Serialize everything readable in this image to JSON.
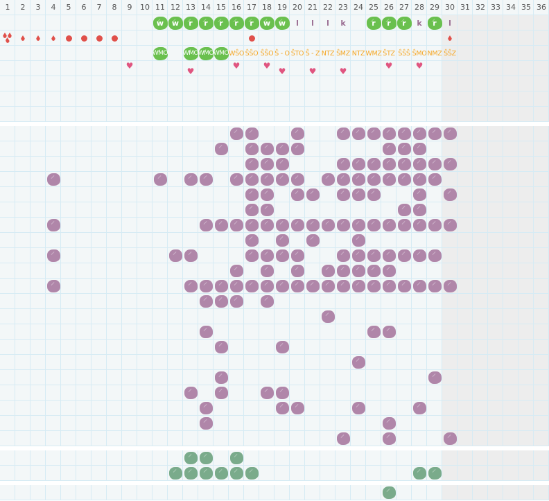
{
  "columns": [
    "1",
    "2",
    "3",
    "4",
    "5",
    "6",
    "7",
    "8",
    "9",
    "10",
    "11",
    "12",
    "13",
    "14",
    "15",
    "16",
    "17",
    "18",
    "19",
    "20",
    "21",
    "22",
    "23",
    "24",
    "25",
    "26",
    "27",
    "28",
    "29",
    "30",
    "31",
    "32",
    "33",
    "34",
    "35",
    "36"
  ],
  "colors": {
    "grid_bg": "#f3f7f8",
    "grid_line": "#d6ebf4",
    "weekend_shade": "#ededed",
    "purple_blob": "#b086a9",
    "green_blob": "#6ac04e",
    "teal_blob": "#7aab8b",
    "orange_text": "#f5a623",
    "red_marker": "#e0504a",
    "heart": "#e05580"
  },
  "top_section": {
    "letters": [
      {
        "col": 11,
        "label": "w",
        "style": "green"
      },
      {
        "col": 12,
        "label": "w",
        "style": "green"
      },
      {
        "col": 13,
        "label": "r",
        "style": "green"
      },
      {
        "col": 14,
        "label": "r",
        "style": "green"
      },
      {
        "col": 15,
        "label": "r",
        "style": "green"
      },
      {
        "col": 16,
        "label": "r",
        "style": "green"
      },
      {
        "col": 17,
        "label": "r",
        "style": "green"
      },
      {
        "col": 18,
        "label": "w",
        "style": "green"
      },
      {
        "col": 19,
        "label": "w",
        "style": "green"
      },
      {
        "col": 20,
        "label": "l",
        "style": "text"
      },
      {
        "col": 21,
        "label": "l",
        "style": "text"
      },
      {
        "col": 22,
        "label": "l",
        "style": "text"
      },
      {
        "col": 23,
        "label": "k",
        "style": "text"
      },
      {
        "col": 25,
        "label": "r",
        "style": "green"
      },
      {
        "col": 26,
        "label": "r",
        "style": "green"
      },
      {
        "col": 27,
        "label": "r",
        "style": "green"
      },
      {
        "col": 28,
        "label": "k",
        "style": "text"
      },
      {
        "col": 29,
        "label": "r",
        "style": "green"
      },
      {
        "col": 30,
        "label": "l",
        "style": "text"
      }
    ],
    "markers": [
      {
        "col": 1,
        "icon": "triple-drop"
      },
      {
        "col": 2,
        "icon": "drop"
      },
      {
        "col": 3,
        "icon": "drop"
      },
      {
        "col": 4,
        "icon": "drop"
      },
      {
        "col": 5,
        "icon": "dot"
      },
      {
        "col": 6,
        "icon": "dot"
      },
      {
        "col": 7,
        "icon": "dot"
      },
      {
        "col": 8,
        "icon": "dot"
      },
      {
        "col": 17,
        "icon": "dot"
      },
      {
        "col": 30,
        "icon": "drop"
      }
    ],
    "codes": [
      {
        "col": 11,
        "label": "WMO",
        "style": "green"
      },
      {
        "col": 13,
        "label": "WMO",
        "style": "green"
      },
      {
        "col": 14,
        "label": "WMO",
        "style": "green"
      },
      {
        "col": 15,
        "label": "WMO",
        "style": "green"
      },
      {
        "col": 16,
        "label": "WŜO",
        "style": "text"
      },
      {
        "col": 17,
        "label": "ŜŜO",
        "style": "text"
      },
      {
        "col": 18,
        "label": "ŜŜO",
        "style": "text"
      },
      {
        "col": 19,
        "label": "Ŝ - O",
        "style": "text"
      },
      {
        "col": 20,
        "label": "ŜTO",
        "style": "text"
      },
      {
        "col": 21,
        "label": "Ŝ - Z",
        "style": "text"
      },
      {
        "col": 22,
        "label": "NTZ",
        "style": "text"
      },
      {
        "col": 23,
        "label": "ŜMZ",
        "style": "text"
      },
      {
        "col": 24,
        "label": "NTZ",
        "style": "text"
      },
      {
        "col": 25,
        "label": "WMZ",
        "style": "text"
      },
      {
        "col": 26,
        "label": "ŜTZ",
        "style": "text"
      },
      {
        "col": 27,
        "label": "ŜŜŜ",
        "style": "text"
      },
      {
        "col": 28,
        "label": "ŜMO",
        "style": "text"
      },
      {
        "col": 29,
        "label": "NMZ",
        "style": "text"
      },
      {
        "col": 30,
        "label": "ŜŜZ",
        "style": "text"
      }
    ],
    "hearts": [
      {
        "col": 9,
        "variant": "upper"
      },
      {
        "col": 13,
        "variant": "lower"
      },
      {
        "col": 16,
        "variant": "upper"
      },
      {
        "col": 18,
        "variant": "upper"
      },
      {
        "col": 19,
        "variant": "lower"
      },
      {
        "col": 21,
        "variant": "lower"
      },
      {
        "col": 23,
        "variant": "lower"
      },
      {
        "col": 26,
        "variant": "upper"
      },
      {
        "col": 28,
        "variant": "upper"
      }
    ]
  },
  "purple_section": [
    [
      16,
      17,
      20,
      23,
      24,
      25,
      26,
      27,
      28,
      29,
      30
    ],
    [
      15,
      17,
      18,
      19,
      20,
      26,
      27,
      28
    ],
    [
      17,
      18,
      19,
      23,
      24,
      25,
      26,
      27,
      28,
      29,
      30
    ],
    [
      4,
      11,
      13,
      14,
      16,
      17,
      18,
      19,
      20,
      22,
      23,
      24,
      25,
      26,
      27,
      28,
      29
    ],
    [
      17,
      18,
      20,
      21,
      23,
      24,
      25,
      28,
      30
    ],
    [
      17,
      18,
      27,
      28
    ],
    [
      4,
      14,
      15,
      16,
      17,
      18,
      19,
      20,
      21,
      22,
      23,
      24,
      25,
      26,
      27,
      28,
      29,
      30
    ],
    [
      17,
      19,
      21,
      24
    ],
    [
      4,
      12,
      13,
      17,
      18,
      19,
      20,
      23,
      24,
      25,
      26,
      27,
      28,
      29
    ],
    [
      16,
      18,
      20,
      22,
      23,
      24,
      25,
      26
    ],
    [
      4,
      13,
      14,
      15,
      16,
      17,
      18,
      19,
      20,
      21,
      22,
      23,
      24,
      25,
      26,
      27,
      28,
      29,
      30
    ],
    [
      14,
      15,
      16,
      18
    ],
    [
      22
    ],
    [
      14,
      25,
      26
    ],
    [
      15,
      19
    ],
    [
      24
    ],
    [
      15,
      29
    ],
    [
      13,
      15,
      18,
      19
    ],
    [
      14,
      19,
      20,
      24,
      28
    ],
    [
      14,
      26
    ],
    [
      23,
      26,
      30
    ]
  ],
  "green_section": [
    [
      13,
      14,
      16
    ],
    [
      12,
      13,
      14,
      15,
      16,
      17,
      28,
      29
    ]
  ],
  "bottom_section": [
    [
      26
    ]
  ]
}
